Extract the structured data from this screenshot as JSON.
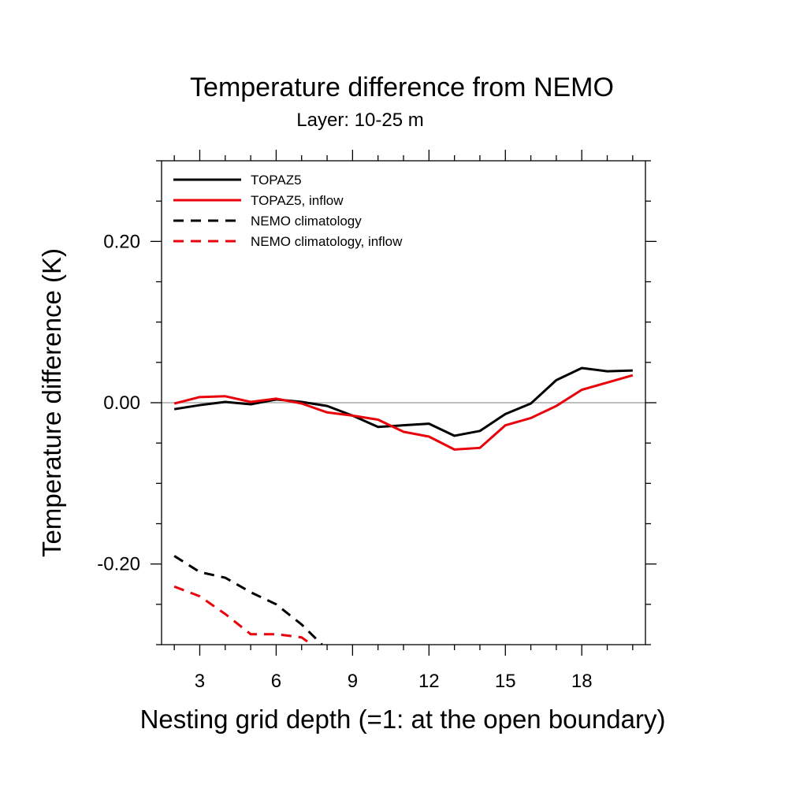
{
  "chart_data": {
    "type": "line",
    "title": "Temperature difference from NEMO",
    "subtitle": "Layer: 10-25 m",
    "xlabel": "Nesting grid depth (=1: at the open boundary)",
    "ylabel": "Temperature difference (K)",
    "xlim": [
      1.5,
      20.5
    ],
    "ylim": [
      -0.3,
      0.3
    ],
    "xticks": [
      3,
      6,
      9,
      12,
      15,
      18
    ],
    "xtick_labels": [
      "3",
      "6",
      "9",
      "12",
      "15",
      "18"
    ],
    "yticks": [
      -0.2,
      0.0,
      0.2
    ],
    "ytick_labels": [
      "-0.20",
      "0.00",
      "0.20"
    ],
    "grid": false,
    "zero_line": true,
    "legend_position": "top-left",
    "series": [
      {
        "name": "TOPAZ5",
        "color": "#000000",
        "dash": "solid",
        "x": [
          2,
          3,
          4,
          5,
          6,
          7,
          8,
          9,
          10,
          11,
          12,
          13,
          14,
          15,
          16,
          17,
          18,
          19,
          20
        ],
        "y": [
          -0.008,
          -0.003,
          0.001,
          -0.002,
          0.004,
          0.001,
          -0.004,
          -0.016,
          -0.03,
          -0.028,
          -0.026,
          -0.041,
          -0.035,
          -0.014,
          -0.001,
          0.028,
          0.043,
          0.039,
          0.04
        ]
      },
      {
        "name": "TOPAZ5, inflow",
        "color": "#e8000b",
        "dash": "solid",
        "x": [
          2,
          3,
          4,
          5,
          6,
          7,
          8,
          9,
          10,
          11,
          12,
          13,
          14,
          15,
          16,
          17,
          18,
          19,
          20
        ],
        "y": [
          -0.001,
          0.007,
          0.008,
          0.001,
          0.005,
          -0.001,
          -0.012,
          -0.016,
          -0.021,
          -0.036,
          -0.042,
          -0.058,
          -0.056,
          -0.028,
          -0.019,
          -0.004,
          0.016,
          0.025,
          0.034
        ]
      },
      {
        "name": "NEMO climatology",
        "color": "#000000",
        "dash": "dashed",
        "x": [
          2,
          3,
          4,
          5,
          6,
          7,
          7.8
        ],
        "y": [
          -0.19,
          -0.21,
          -0.217,
          -0.235,
          -0.25,
          -0.275,
          -0.3
        ]
      },
      {
        "name": "NEMO climatology, inflow",
        "color": "#e8000b",
        "dash": "dashed",
        "x": [
          2,
          3,
          4,
          5,
          6,
          7,
          7.4
        ],
        "y": [
          -0.228,
          -0.24,
          -0.262,
          -0.287,
          -0.287,
          -0.291,
          -0.3
        ]
      }
    ]
  }
}
